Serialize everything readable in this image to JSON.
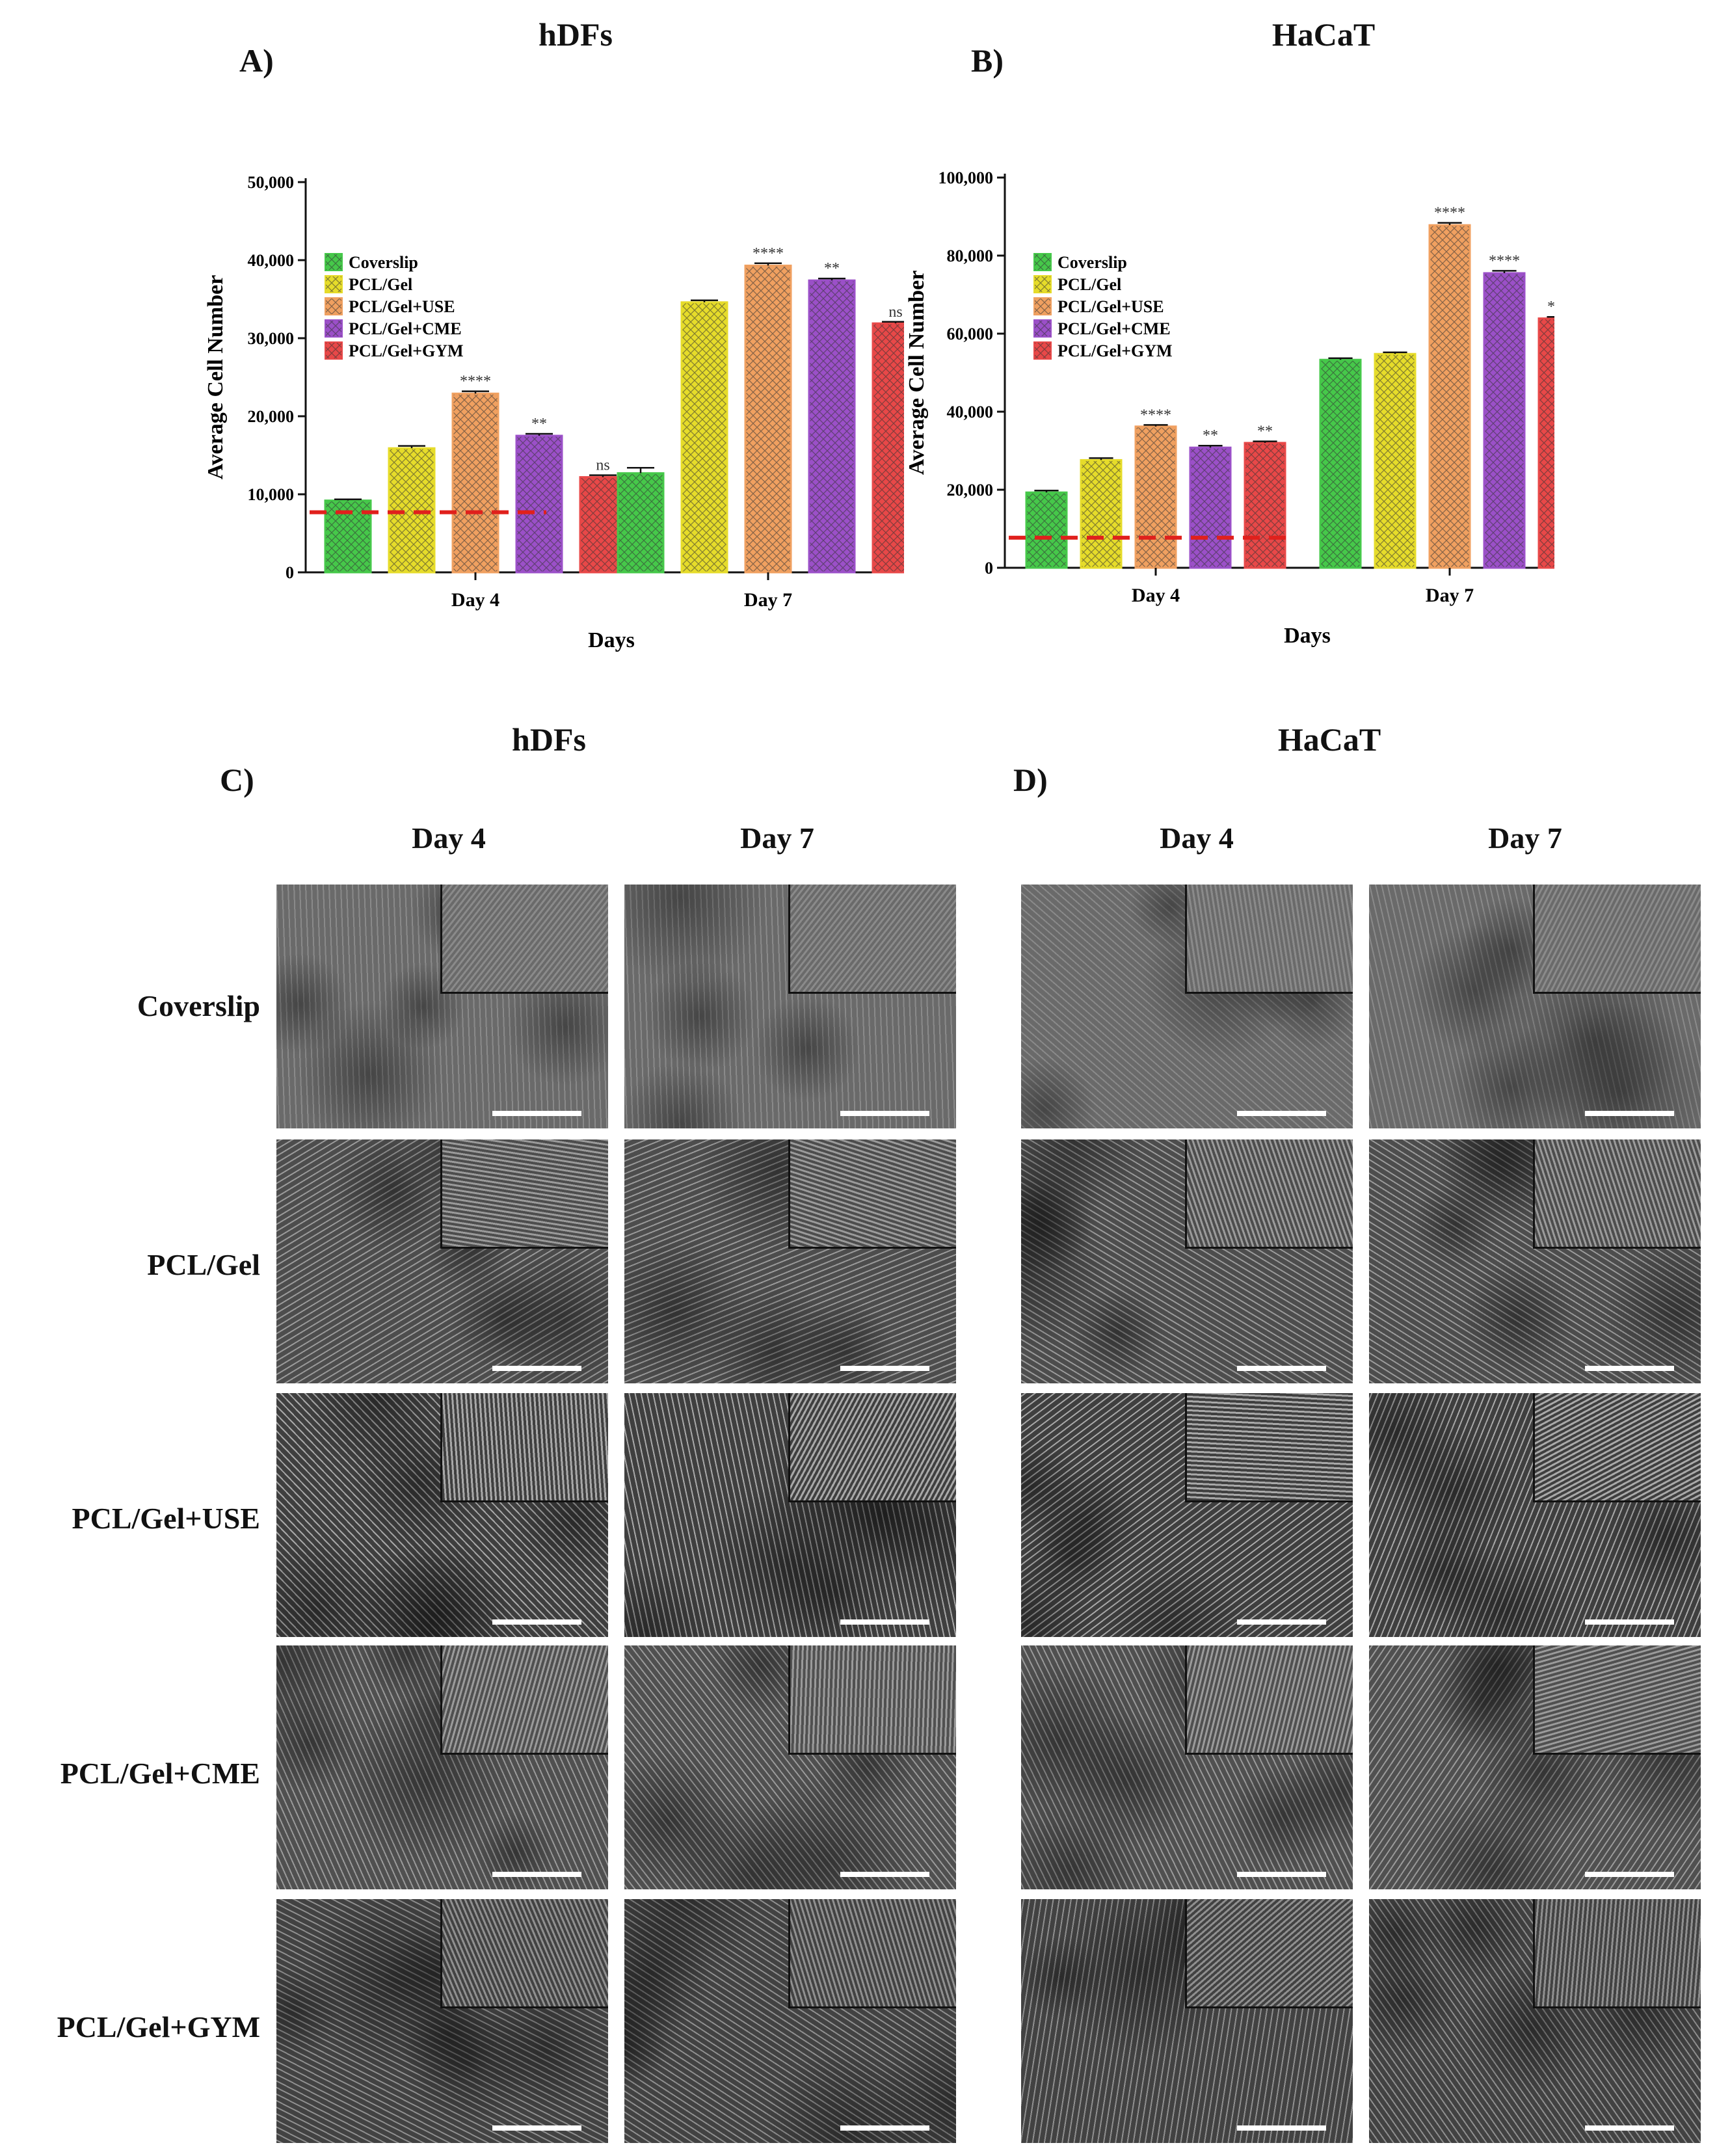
{
  "panels": {
    "A": {
      "letter": "A)",
      "title": "hDFs"
    },
    "B": {
      "letter": "B)",
      "title": "HaCaT"
    },
    "C": {
      "letter": "C)",
      "title": "hDFs"
    },
    "D": {
      "letter": "D)",
      "title": "HaCaT"
    }
  },
  "image_grid": {
    "column_headers": [
      "Day 4",
      "Day 7"
    ],
    "row_headers": [
      "Coverslip",
      "PCL/Gel",
      "PCL/Gel+USE",
      "PCL/Gel+CME",
      "PCL/Gel+GYM"
    ]
  },
  "chart_data": [
    {
      "id": "A",
      "type": "bar",
      "title": "hDFs",
      "xlabel": "Days",
      "ylabel": "Average Cell Number",
      "categories": [
        "Day 4",
        "Day 7"
      ],
      "ylim": [
        0,
        50000
      ],
      "yticks": [
        0,
        10000,
        20000,
        30000,
        40000,
        50000
      ],
      "ytick_labels": [
        "0",
        "10,000",
        "20,000",
        "30,000",
        "40,000",
        "50,000"
      ],
      "grid": false,
      "legend_position": "top-left",
      "reference_line": {
        "value": 7700,
        "style": "dashed",
        "color": "#e0201c"
      },
      "series": [
        {
          "name": "Coverslip",
          "color": "#46c84a",
          "values": [
            9200,
            12700
          ],
          "errors": [
            150,
            700
          ],
          "significance": [
            "",
            ""
          ]
        },
        {
          "name": "PCL/Gel",
          "color": "#e6dc2a",
          "values": [
            15900,
            34600
          ],
          "errors": [
            300,
            250
          ],
          "significance": [
            "",
            ""
          ]
        },
        {
          "name": "PCL/Gel+USE",
          "color": "#f0a060",
          "values": [
            22900,
            39300
          ],
          "errors": [
            300,
            300
          ],
          "significance": [
            "****",
            "****"
          ]
        },
        {
          "name": "PCL/Gel+CME",
          "color": "#9b50c8",
          "values": [
            17500,
            37400
          ],
          "errors": [
            250,
            250
          ],
          "significance": [
            "**",
            "**"
          ]
        },
        {
          "name": "PCL/Gel+GYM",
          "color": "#e84848",
          "values": [
            12200,
            31900
          ],
          "errors": [
            250,
            200
          ],
          "significance": [
            "ns",
            "ns"
          ]
        }
      ]
    },
    {
      "id": "B",
      "type": "bar",
      "title": "HaCaT",
      "xlabel": "Days",
      "ylabel": "Average Cell Number",
      "categories": [
        "Day 4",
        "Day 7"
      ],
      "ylim": [
        0,
        100000
      ],
      "yticks": [
        0,
        20000,
        40000,
        60000,
        80000,
        100000
      ],
      "ytick_labels": [
        "0",
        "20,000",
        "40,000",
        "60,000",
        "80,000",
        "100,000"
      ],
      "grid": false,
      "legend_position": "top-left",
      "reference_line": {
        "value": 7700,
        "style": "dashed",
        "color": "#e0201c"
      },
      "series": [
        {
          "name": "Coverslip",
          "color": "#46c84a",
          "values": [
            19300,
            53300
          ],
          "errors": [
            500,
            400
          ],
          "significance": [
            "",
            ""
          ]
        },
        {
          "name": "PCL/Gel",
          "color": "#e6dc2a",
          "values": [
            27600,
            54800
          ],
          "errors": [
            500,
            400
          ],
          "significance": [
            "",
            ""
          ]
        },
        {
          "name": "PCL/Gel+USE",
          "color": "#f0a060",
          "values": [
            36200,
            87800
          ],
          "errors": [
            400,
            600
          ],
          "significance": [
            "****",
            "****"
          ]
        },
        {
          "name": "PCL/Gel+CME",
          "color": "#9b50c8",
          "values": [
            30800,
            75500
          ],
          "errors": [
            500,
            600
          ],
          "significance": [
            "**",
            "****"
          ]
        },
        {
          "name": "PCL/Gel+GYM",
          "color": "#e84848",
          "values": [
            32000,
            63900
          ],
          "errors": [
            400,
            400
          ],
          "significance": [
            "**",
            "***"
          ]
        }
      ]
    }
  ]
}
